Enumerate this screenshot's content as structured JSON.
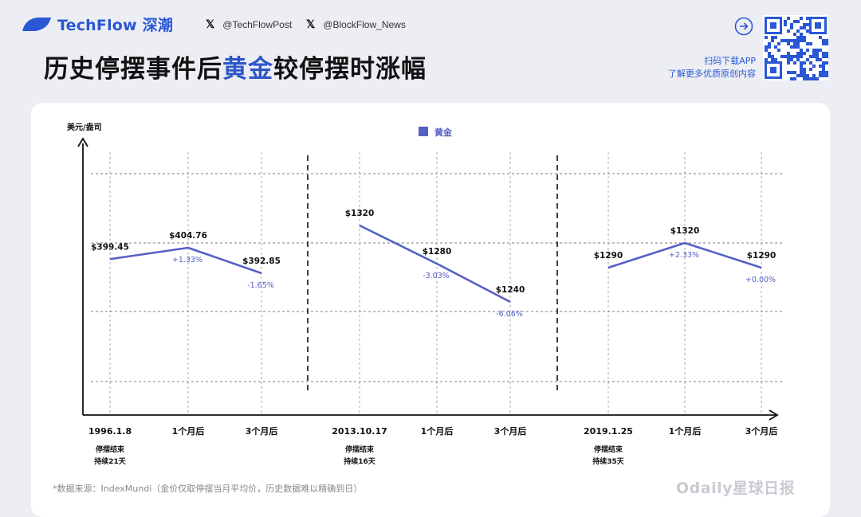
{
  "header": {
    "brand": "TechFlow 深潮",
    "twitter_1": "@TechFlowPost",
    "twitter_2": "@BlockFlow_News",
    "title_part1": "历史停摆事件后",
    "title_highlight": "黄金",
    "title_part2": "较停摆时涨幅",
    "promo_line1": "扫码下载APP",
    "promo_line2": "了解更多优质原创内容",
    "brand_color": "#2a57d6",
    "icons": [
      "logo-icon",
      "x-icon",
      "arrow-right-icon",
      "qr-code"
    ]
  },
  "chart_data": {
    "type": "line",
    "ylabel": "美元/盎司",
    "legend": "黄金",
    "legend_placement": "top-center",
    "line_color": "#5560c4",
    "grid": true,
    "categories": [
      "1996.1.8",
      "1个月后",
      "3个月后",
      "2013.10.17",
      "1个月后",
      "3个月后",
      "2019.1.25",
      "1个月后",
      "3个月后"
    ],
    "groups": [
      {
        "values": [
          399.45,
          404.76,
          392.85
        ],
        "value_labels": [
          "$399.45",
          "$404.76",
          "$392.85"
        ],
        "changes": [
          "",
          "+1.33%",
          "-1.65%"
        ],
        "note_line1": "停摆结束",
        "note_line2": "持续21天"
      },
      {
        "values": [
          1320,
          1280,
          1240
        ],
        "value_labels": [
          "$1320",
          "$1280",
          "$1240"
        ],
        "changes": [
          "",
          "-3.03%",
          "-6.06%"
        ],
        "note_line1": "停摆结束",
        "note_line2": "持续16天"
      },
      {
        "values": [
          1290,
          1320,
          1290
        ],
        "value_labels": [
          "$1290",
          "$1320",
          "$1290"
        ],
        "changes": [
          "",
          "+2.33%",
          "+0.00%"
        ],
        "note_line1": "停摆结束",
        "note_line2": "持续35天"
      }
    ]
  },
  "footer": {
    "source": "*数据来源：IndexMundi（金价仅取停摆当月平均价，历史数据难以精确到日）",
    "watermark": "Odaily星球日报"
  }
}
